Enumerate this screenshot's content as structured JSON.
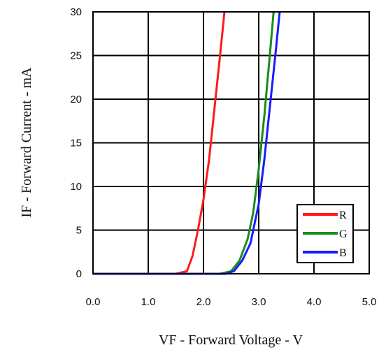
{
  "chart_data": {
    "type": "line",
    "title": "",
    "xlabel": "VF - Forward Voltage - V",
    "ylabel": "IF - Forward Current - mA",
    "xlim": [
      0,
      5
    ],
    "ylim": [
      0,
      30
    ],
    "x_ticks": [
      "0.0",
      "1.0",
      "2.0",
      "3.0",
      "4.0",
      "5.0"
    ],
    "y_ticks": [
      "0",
      "5",
      "10",
      "15",
      "20",
      "25",
      "30"
    ],
    "grid": true,
    "legend_position": "bottom-right",
    "series": [
      {
        "name": "R",
        "color": "#ff1a1a",
        "points": [
          [
            0,
            0
          ],
          [
            1.5,
            0
          ],
          [
            1.7,
            0.3
          ],
          [
            1.8,
            2
          ],
          [
            1.9,
            5
          ],
          [
            2.0,
            8.5
          ],
          [
            2.1,
            13
          ],
          [
            2.2,
            19
          ],
          [
            2.3,
            25
          ],
          [
            2.38,
            30
          ]
        ]
      },
      {
        "name": "G",
        "color": "#1a8c1a",
        "points": [
          [
            0,
            0
          ],
          [
            2.3,
            0
          ],
          [
            2.5,
            0.3
          ],
          [
            2.65,
            1.5
          ],
          [
            2.8,
            4
          ],
          [
            2.9,
            7
          ],
          [
            3.0,
            12
          ],
          [
            3.1,
            18
          ],
          [
            3.2,
            25
          ],
          [
            3.27,
            30
          ]
        ]
      },
      {
        "name": "B",
        "color": "#1a1aff",
        "points": [
          [
            0,
            0
          ],
          [
            2.4,
            0
          ],
          [
            2.55,
            0.3
          ],
          [
            2.7,
            1.5
          ],
          [
            2.85,
            3.5
          ],
          [
            3.0,
            8
          ],
          [
            3.1,
            13
          ],
          [
            3.2,
            19
          ],
          [
            3.3,
            25
          ],
          [
            3.38,
            30
          ]
        ]
      }
    ]
  }
}
